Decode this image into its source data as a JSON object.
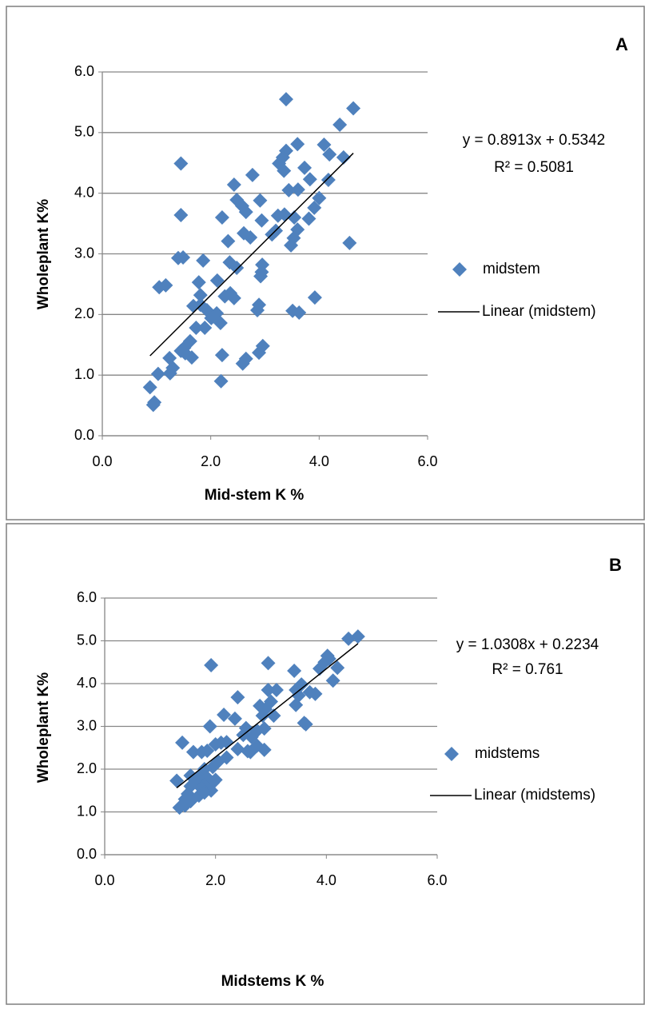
{
  "chart_data": [
    {
      "type": "scatter",
      "panel_label": "A",
      "xlabel": "Mid-stem K %",
      "ylabel": "Wholeplant K%",
      "xlim": [
        0,
        6
      ],
      "ylim": [
        0,
        6
      ],
      "grid": true,
      "xticks": [
        {
          "value": 0,
          "label": "0.0"
        },
        {
          "value": 2,
          "label": "2.0"
        },
        {
          "value": 4,
          "label": "4.0"
        },
        {
          "value": 6,
          "label": "6.0"
        }
      ],
      "yticks": [
        {
          "value": 0,
          "label": "0.0"
        },
        {
          "value": 1,
          "label": "1.0"
        },
        {
          "value": 2,
          "label": "2.0"
        },
        {
          "value": 3,
          "label": "3.0"
        },
        {
          "value": 4,
          "label": "4.0"
        },
        {
          "value": 5,
          "label": "5.0"
        },
        {
          "value": 6,
          "label": "6.0"
        }
      ],
      "series": [
        {
          "name": "midstem",
          "color": "#4f81bd",
          "x": [
            3.39,
            4.63,
            4.38,
            3.6,
            4.09,
            4.19,
            4.45,
            3.39,
            3.33,
            3.26,
            3.35,
            3.73,
            1.45,
            2.77,
            2.43,
            3.83,
            4.17,
            3.44,
            3.61,
            4.0,
            3.91,
            2.91,
            2.48,
            2.58,
            2.65,
            2.21,
            1.45,
            3.24,
            3.36,
            3.54,
            3.81,
            2.94,
            3.6,
            3.53,
            3.48,
            2.73,
            2.61,
            2.32,
            3.2,
            3.13,
            4.56,
            1.49,
            1.4,
            1.86,
            2.35,
            2.48,
            2.95,
            2.94,
            2.92,
            1.78,
            2.12,
            1.05,
            1.17,
            2.36,
            2.26,
            2.43,
            1.81,
            1.81,
            1.93,
            2.11,
            3.92,
            3.51,
            3.63,
            2.89,
            2.86,
            2.18,
            2.01,
            1.73,
            1.89,
            1.68,
            1.51,
            1.62,
            1.65,
            1.45,
            1.53,
            2.21,
            2.96,
            2.89,
            2.65,
            2.59,
            1.24,
            1.25,
            1.3,
            1.03,
            2.19,
            0.88,
            0.96,
            0.94
          ],
          "values": [
            5.55,
            5.4,
            5.13,
            4.81,
            4.8,
            4.64,
            4.59,
            4.7,
            4.59,
            4.49,
            4.37,
            4.42,
            4.49,
            4.3,
            4.14,
            4.23,
            4.22,
            4.05,
            4.06,
            3.92,
            3.76,
            3.88,
            3.89,
            3.79,
            3.69,
            3.6,
            3.64,
            3.63,
            3.65,
            3.6,
            3.58,
            3.55,
            3.4,
            3.26,
            3.14,
            3.27,
            3.34,
            3.21,
            3.38,
            3.32,
            3.18,
            2.94,
            2.93,
            2.89,
            2.86,
            2.77,
            2.82,
            2.7,
            2.63,
            2.53,
            2.56,
            2.45,
            2.48,
            2.35,
            2.3,
            2.27,
            2.32,
            2.16,
            2.07,
            2.02,
            2.28,
            2.06,
            2.03,
            2.16,
            2.07,
            1.86,
            1.94,
            1.78,
            1.78,
            2.14,
            1.45,
            1.56,
            1.29,
            1.4,
            1.36,
            1.33,
            1.48,
            1.37,
            1.27,
            1.19,
            1.28,
            1.03,
            1.12,
            1.02,
            0.9,
            0.8,
            0.55,
            0.51
          ]
        }
      ],
      "trendline": {
        "name": "Linear (midstem)",
        "equation": "y = 0.8913x + 0.5342",
        "r2_label": "R² = 0.5081",
        "slope": 0.8913,
        "intercept": 0.5342,
        "color": "#000000"
      }
    },
    {
      "type": "scatter",
      "panel_label": "B",
      "xlabel": "Midstems K %",
      "ylabel": "Wholeplant K%",
      "xlim": [
        0,
        6
      ],
      "ylim": [
        0,
        6
      ],
      "grid": true,
      "xticks": [
        {
          "value": 0,
          "label": "0.0"
        },
        {
          "value": 2,
          "label": "2.0"
        },
        {
          "value": 4,
          "label": "4.0"
        },
        {
          "value": 6,
          "label": "6.0"
        }
      ],
      "yticks": [
        {
          "value": 0,
          "label": "0.0"
        },
        {
          "value": 1,
          "label": "1.0"
        },
        {
          "value": 2,
          "label": "2.0"
        },
        {
          "value": 3,
          "label": "3.0"
        },
        {
          "value": 4,
          "label": "4.0"
        },
        {
          "value": 5,
          "label": "5.0"
        },
        {
          "value": 6,
          "label": "6.0"
        }
      ],
      "series": [
        {
          "name": "midstems",
          "color": "#4f81bd",
          "x": [
            4.57,
            4.4,
            4.02,
            4.05,
            3.97,
            4.2,
            3.88,
            3.42,
            4.12,
            2.95,
            1.92,
            3.55,
            3.45,
            3.1,
            2.95,
            3.7,
            3.8,
            3.5,
            2.4,
            3.45,
            3.0,
            2.8,
            2.9,
            2.15,
            2.35,
            2.85,
            3.05,
            3.6,
            3.63,
            1.9,
            2.55,
            2.75,
            2.88,
            2.65,
            2.5,
            2.1,
            2.2,
            1.4,
            2.0,
            2.75,
            2.4,
            2.58,
            2.88,
            2.63,
            1.6,
            1.75,
            1.85,
            2.2,
            2.05,
            1.95,
            1.8,
            1.55,
            1.7,
            1.85,
            2.0,
            1.3,
            1.65,
            1.95,
            1.8,
            1.55,
            1.75,
            1.92,
            1.5,
            1.7,
            1.8,
            1.45,
            1.55,
            1.35,
            1.45
          ],
          "values": [
            5.1,
            5.05,
            4.65,
            4.58,
            4.5,
            4.37,
            4.35,
            4.3,
            4.07,
            4.48,
            4.43,
            3.98,
            3.85,
            3.85,
            3.85,
            3.8,
            3.76,
            3.72,
            3.68,
            3.5,
            3.58,
            3.48,
            3.4,
            3.27,
            3.18,
            3.25,
            3.25,
            3.08,
            3.05,
            3.0,
            2.96,
            2.9,
            2.95,
            2.75,
            2.8,
            2.62,
            2.63,
            2.62,
            2.58,
            2.55,
            2.47,
            2.42,
            2.45,
            2.4,
            2.4,
            2.4,
            2.43,
            2.27,
            2.18,
            2.05,
            2.0,
            1.85,
            1.82,
            1.8,
            1.75,
            1.73,
            1.7,
            1.68,
            1.62,
            1.6,
            1.55,
            1.5,
            1.42,
            1.38,
            1.45,
            1.3,
            1.25,
            1.1,
            1.15
          ]
        }
      ],
      "trendline": {
        "name": "Linear (midstems)",
        "equation": "y = 1.0308x + 0.2234",
        "r2_label": "R² = 0.761",
        "slope": 1.0308,
        "intercept": 0.2234,
        "color": "#000000"
      }
    }
  ]
}
